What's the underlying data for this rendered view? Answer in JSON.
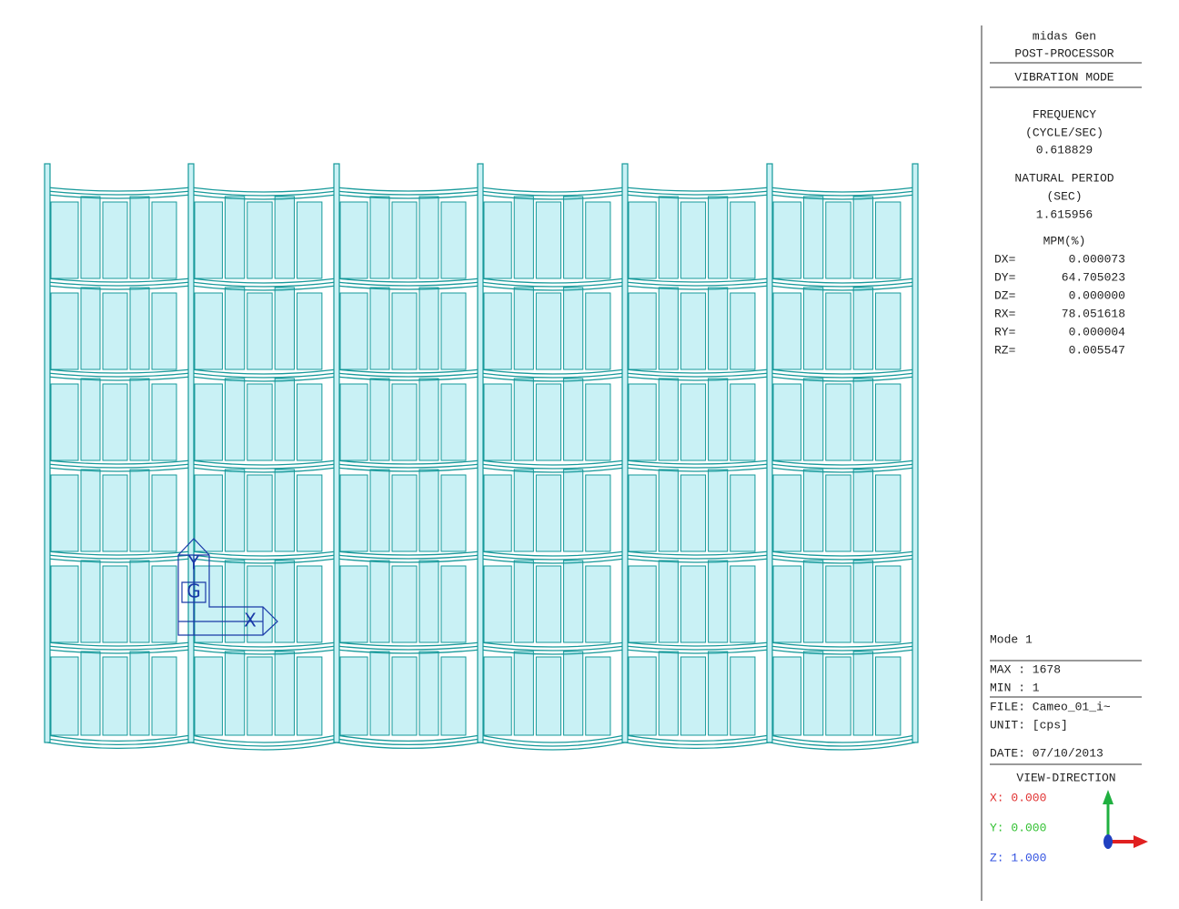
{
  "panel": {
    "header": {
      "program": "midas Gen",
      "module": "POST-PROCESSOR",
      "result": "VIBRATION MODE"
    },
    "frequency": {
      "label": "FREQUENCY",
      "unit": "(CYCLE/SEC)",
      "value": "0.618829"
    },
    "period": {
      "label": "NATURAL PERIOD",
      "unit": "(SEC)",
      "value": "1.615956"
    },
    "mpm": {
      "label": "MPM(%)",
      "rows": [
        {
          "label": "DX=",
          "value": "0.000073"
        },
        {
          "label": "DY=",
          "value": "64.705023"
        },
        {
          "label": "DZ=",
          "value": "0.000000"
        },
        {
          "label": "RX=",
          "value": "78.051618"
        },
        {
          "label": "RY=",
          "value": "0.000004"
        },
        {
          "label": "RZ=",
          "value": "0.005547"
        }
      ]
    },
    "mode": "Mode 1",
    "max": "MAX : 1678",
    "min": "MIN : 1",
    "file": "FILE: Cameo_01_i~",
    "unit": "UNIT: [cps]",
    "date": "DATE: 07/10/2013",
    "view": {
      "title": "VIEW-DIRECTION",
      "x": "X: 0.000",
      "y": "Y: 0.000",
      "z": "Z: 1.000"
    }
  },
  "axis_icon": {
    "y": "Y",
    "g": "G",
    "x": "X"
  }
}
